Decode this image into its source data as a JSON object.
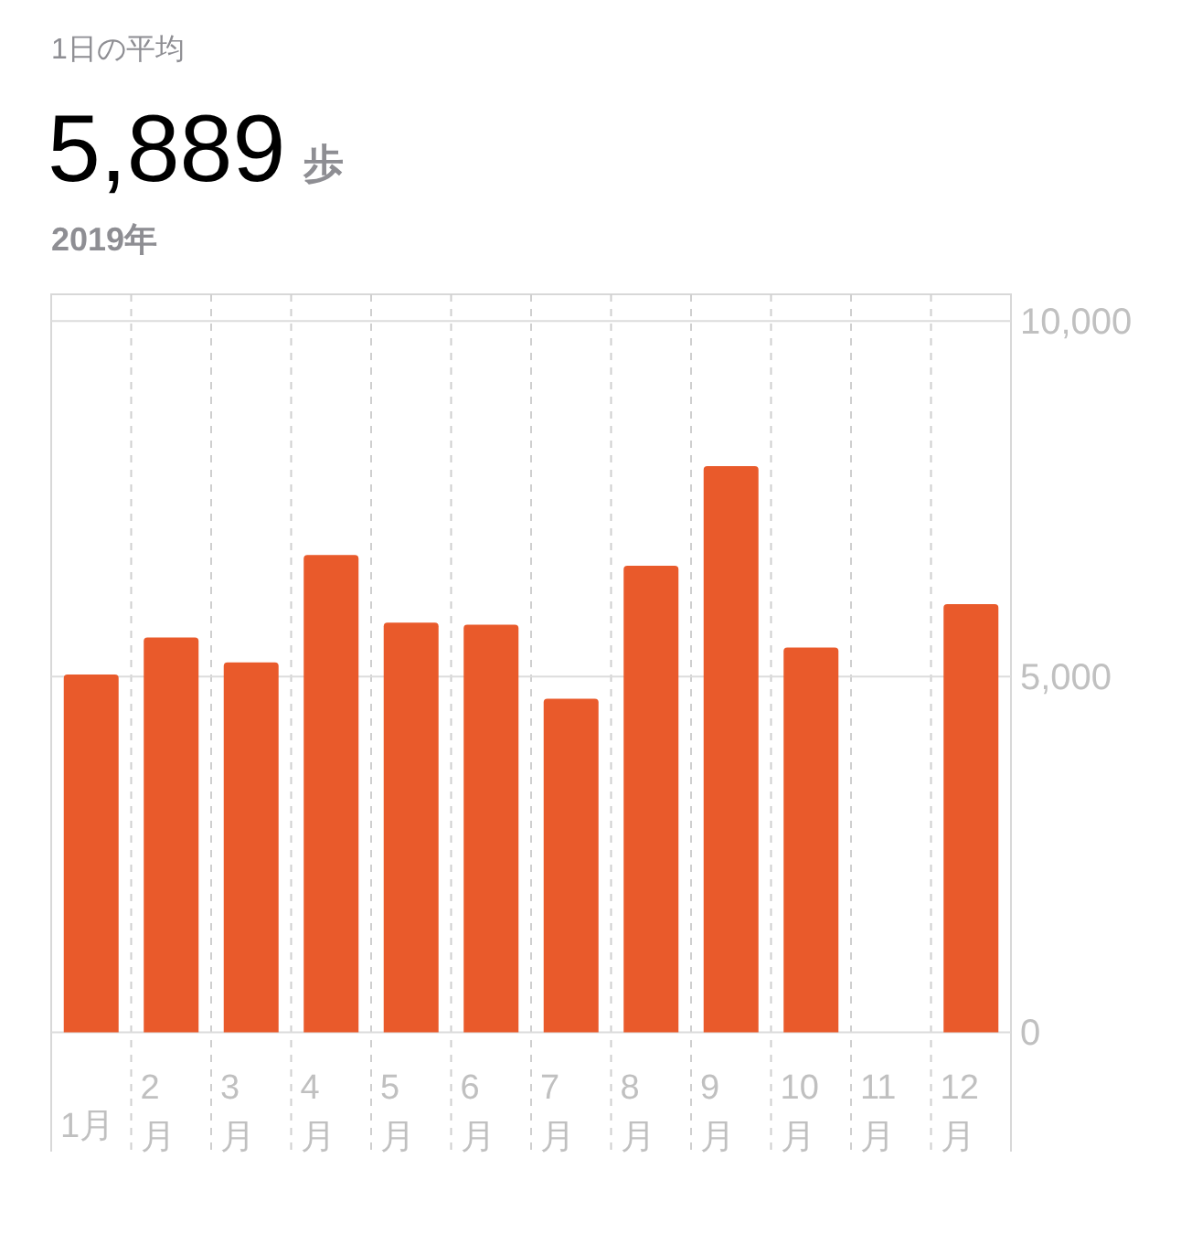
{
  "chart_data": {
    "type": "bar",
    "title": "1日の平均",
    "subtitle": "2019年",
    "annotations": [
      "5,889",
      "歩"
    ],
    "categories": [
      "1月",
      "2月",
      "3月",
      "4月",
      "5月",
      "6月",
      "7月",
      "8月",
      "9月",
      "10月",
      "11月",
      "12月"
    ],
    "values": [
      5030,
      5550,
      5200,
      6710,
      5760,
      5730,
      4690,
      6560,
      7960,
      5410,
      null,
      6020
    ],
    "color": "#e95a2b",
    "ylim": [
      0,
      10000
    ],
    "yticks": [
      0,
      {
        "value": 5000,
        "label": "5,000"
      },
      {
        "value": 10000,
        "label": "10,000"
      }
    ],
    "grid": true
  }
}
